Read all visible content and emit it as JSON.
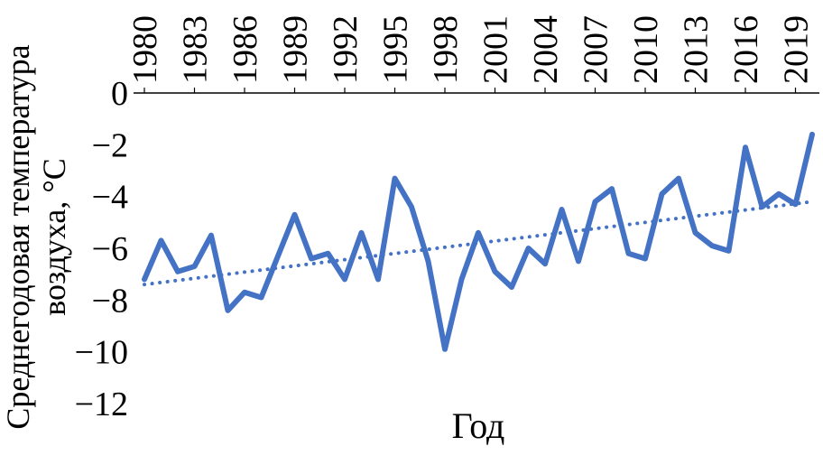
{
  "chart_data": {
    "type": "line",
    "title": "",
    "xlabel": "Год",
    "ylabel": "Среднегодовая температура воздуха, °C",
    "ylabel_lines": [
      "Среднегодовая температура",
      "воздуха, °C"
    ],
    "x": [
      1980,
      1981,
      1982,
      1983,
      1984,
      1985,
      1986,
      1987,
      1988,
      1989,
      1990,
      1991,
      1992,
      1993,
      1994,
      1995,
      1996,
      1997,
      1998,
      1999,
      2000,
      2001,
      2002,
      2003,
      2004,
      2005,
      2006,
      2007,
      2008,
      2009,
      2010,
      2011,
      2012,
      2013,
      2014,
      2015,
      2016,
      2017,
      2018,
      2019,
      2020
    ],
    "series": [
      {
        "name": "Среднегодовая температура воздуха, °C",
        "color": "#4472C4",
        "style": "solid",
        "values": [
          -7.2,
          -5.7,
          -6.9,
          -6.7,
          -5.5,
          -8.4,
          -7.7,
          -7.9,
          -6.3,
          -4.7,
          -6.4,
          -6.2,
          -7.2,
          -5.4,
          -7.2,
          -3.3,
          -4.4,
          -6.5,
          -9.9,
          -7.2,
          -5.4,
          -6.9,
          -7.5,
          -6.0,
          -6.6,
          -4.5,
          -6.5,
          -4.2,
          -3.7,
          -6.2,
          -6.4,
          -3.9,
          -3.3,
          -5.4,
          -5.9,
          -6.1,
          -2.1,
          -4.4,
          -3.9,
          -4.3,
          -1.6
        ]
      }
    ],
    "trendline": {
      "style": "dotted",
      "color": "#4472C4",
      "y_start": -7.4,
      "y_end": -4.2
    },
    "xticks": [
      1980,
      1983,
      1986,
      1989,
      1992,
      1995,
      1998,
      2001,
      2004,
      2007,
      2010,
      2013,
      2016,
      2019
    ],
    "yticks": [
      0,
      -2,
      -4,
      -6,
      -8,
      -10,
      -12
    ],
    "xlim": [
      1980,
      2020
    ],
    "ylim": [
      -12,
      0
    ],
    "grid": false,
    "legend": false,
    "axis_color": "#000000"
  }
}
